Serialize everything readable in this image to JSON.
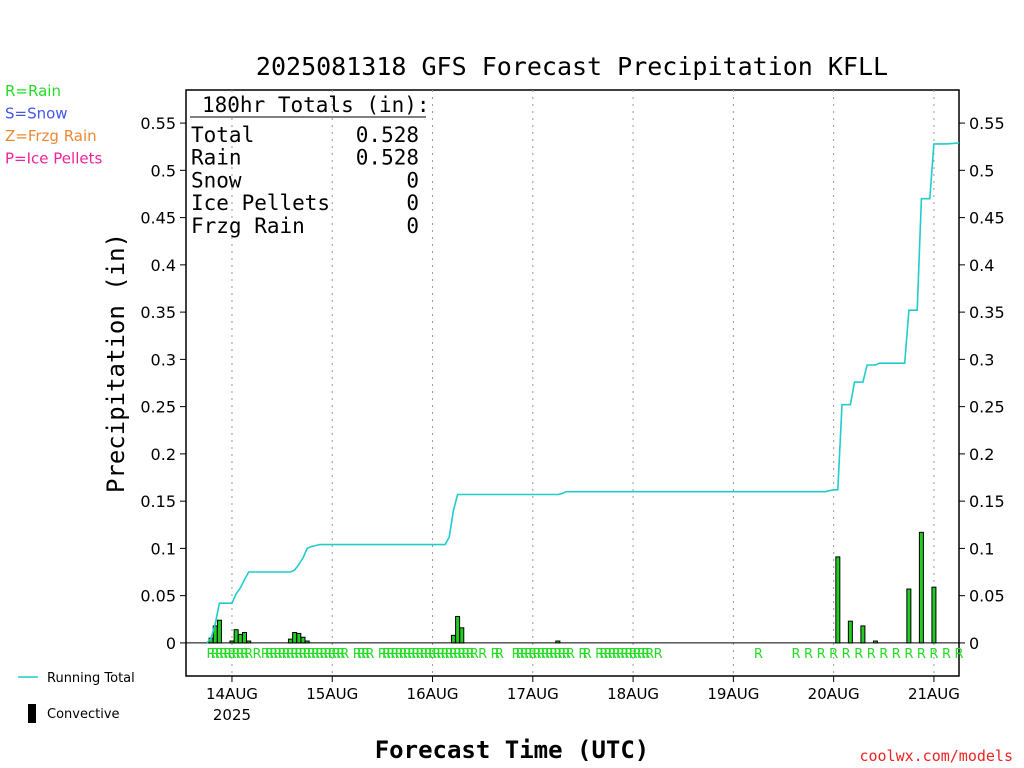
{
  "chart_data": {
    "type": "bar",
    "title": "2025081318 GFS Forecast Precipitation KFLL",
    "xlabel": "Forecast Time (UTC)",
    "ylabel": "Precipitation (in)",
    "ylim": [
      -0.035,
      0.585
    ],
    "xlim_hours": [
      -5,
      180
    ],
    "grid": "vertical dotted at each day",
    "y_ticks": [
      "0",
      "0.05",
      "0.1",
      "0.15",
      "0.2",
      "0.25",
      "0.3",
      "0.35",
      "0.4",
      "0.45",
      "0.5",
      "0.55"
    ],
    "x_ticks": [
      {
        "hour": 6,
        "label": "14AUG",
        "sub": "2025"
      },
      {
        "hour": 30,
        "label": "15AUG"
      },
      {
        "hour": 54,
        "label": "16AUG"
      },
      {
        "hour": 78,
        "label": "17AUG"
      },
      {
        "hour": 102,
        "label": "18AUG"
      },
      {
        "hour": 126,
        "label": "19AUG"
      },
      {
        "hour": 150,
        "label": "20AUG"
      },
      {
        "hour": 174,
        "label": "21AUG"
      }
    ],
    "legend": {
      "types": [
        {
          "text": "R=Rain",
          "color": "#22dd22"
        },
        {
          "text": "S=Snow",
          "color": "#4455ee"
        },
        {
          "text": "Z=Frzg Rain",
          "color": "#ee8833"
        },
        {
          "text": "P=Ice Pellets",
          "color": "#ee2299"
        }
      ],
      "running_total": "Running Total",
      "convective": "Convective"
    },
    "totals": {
      "header": "180hr Totals (in):",
      "rows": [
        {
          "label": "Total",
          "value": "0.528"
        },
        {
          "label": "Rain",
          "value": "0.528"
        },
        {
          "label": "Snow",
          "value": "0"
        },
        {
          "label": "Ice Pellets",
          "value": "0"
        },
        {
          "label": "Frzg Rain",
          "value": "0"
        }
      ]
    },
    "credit": "coolwx.com/models",
    "series": [
      {
        "name": "Running Total",
        "color": "#22cccc",
        "points": [
          [
            0,
            0
          ],
          [
            1,
            0.005
          ],
          [
            2,
            0.02
          ],
          [
            3,
            0.042
          ],
          [
            4,
            0.042
          ],
          [
            5,
            0.042
          ],
          [
            6,
            0.042
          ],
          [
            7,
            0.052
          ],
          [
            8,
            0.058
          ],
          [
            9,
            0.067
          ],
          [
            10,
            0.075
          ],
          [
            11,
            0.075
          ],
          [
            12,
            0.075
          ],
          [
            13,
            0.075
          ],
          [
            14,
            0.075
          ],
          [
            15,
            0.075
          ],
          [
            16,
            0.075
          ],
          [
            17,
            0.075
          ],
          [
            18,
            0.075
          ],
          [
            19,
            0.075
          ],
          [
            20,
            0.075
          ],
          [
            21,
            0.077
          ],
          [
            22,
            0.083
          ],
          [
            23,
            0.09
          ],
          [
            24,
            0.1
          ],
          [
            25,
            0.102
          ],
          [
            26,
            0.103
          ],
          [
            27,
            0.104
          ],
          [
            54,
            0.104
          ],
          [
            57,
            0.104
          ],
          [
            58,
            0.112
          ],
          [
            59,
            0.14
          ],
          [
            60,
            0.157
          ],
          [
            61,
            0.157
          ],
          [
            62,
            0.157
          ],
          [
            69,
            0.157
          ],
          [
            84,
            0.157
          ],
          [
            85,
            0.158
          ],
          [
            86,
            0.16
          ],
          [
            148,
            0.16
          ],
          [
            150,
            0.162
          ],
          [
            151,
            0.162
          ],
          [
            152,
            0.252
          ],
          [
            153,
            0.252
          ],
          [
            154,
            0.252
          ],
          [
            155,
            0.276
          ],
          [
            156,
            0.276
          ],
          [
            157,
            0.276
          ],
          [
            158,
            0.294
          ],
          [
            159,
            0.294
          ],
          [
            160,
            0.294
          ],
          [
            161,
            0.296
          ],
          [
            162,
            0.296
          ],
          [
            165,
            0.296
          ],
          [
            166,
            0.296
          ],
          [
            167,
            0.296
          ],
          [
            168,
            0.352
          ],
          [
            169,
            0.352
          ],
          [
            170,
            0.352
          ],
          [
            171,
            0.47
          ],
          [
            172,
            0.47
          ],
          [
            173,
            0.47
          ],
          [
            174,
            0.528
          ],
          [
            177,
            0.528
          ],
          [
            180,
            0.529
          ]
        ]
      },
      {
        "name": "Convective",
        "color": "#22cc22",
        "bars": [
          [
            1,
            0.005
          ],
          [
            2,
            0.018
          ],
          [
            3,
            0.024
          ],
          [
            6,
            0.002
          ],
          [
            7,
            0.014
          ],
          [
            8,
            0.009
          ],
          [
            9,
            0.011
          ],
          [
            10,
            0.002
          ],
          [
            20,
            0.004
          ],
          [
            21,
            0.011
          ],
          [
            22,
            0.01
          ],
          [
            23,
            0.006
          ],
          [
            24,
            0.002
          ],
          [
            59,
            0.008
          ],
          [
            60,
            0.028
          ],
          [
            61,
            0.016
          ],
          [
            84,
            0.002
          ],
          [
            151,
            0.091
          ],
          [
            154,
            0.023
          ],
          [
            157,
            0.018
          ],
          [
            160,
            0.002
          ],
          [
            168,
            0.057
          ],
          [
            171,
            0.117
          ],
          [
            174,
            0.059
          ]
        ]
      }
    ],
    "precip_type_markers": {
      "letter": "R",
      "hours": [
        1,
        2,
        3,
        4,
        5,
        6,
        7,
        8,
        9,
        10,
        12,
        14,
        15,
        16,
        17,
        18,
        19,
        20,
        21,
        22,
        23,
        24,
        25,
        26,
        27,
        28,
        29,
        30,
        31,
        32,
        33,
        36,
        37,
        38,
        39,
        42,
        43,
        44,
        45,
        46,
        47,
        48,
        49,
        50,
        51,
        52,
        53,
        54,
        55,
        56,
        57,
        58,
        59,
        60,
        61,
        62,
        63,
        64,
        66,
        69,
        70,
        74,
        75,
        76,
        77,
        78,
        79,
        80,
        81,
        82,
        83,
        84,
        85,
        86,
        87,
        90,
        91,
        94,
        95,
        96,
        97,
        98,
        99,
        100,
        101,
        102,
        103,
        104,
        105,
        106,
        108,
        132,
        141,
        144,
        147,
        150,
        153,
        156,
        159,
        162,
        165,
        168,
        171,
        174,
        177,
        180
      ]
    }
  }
}
